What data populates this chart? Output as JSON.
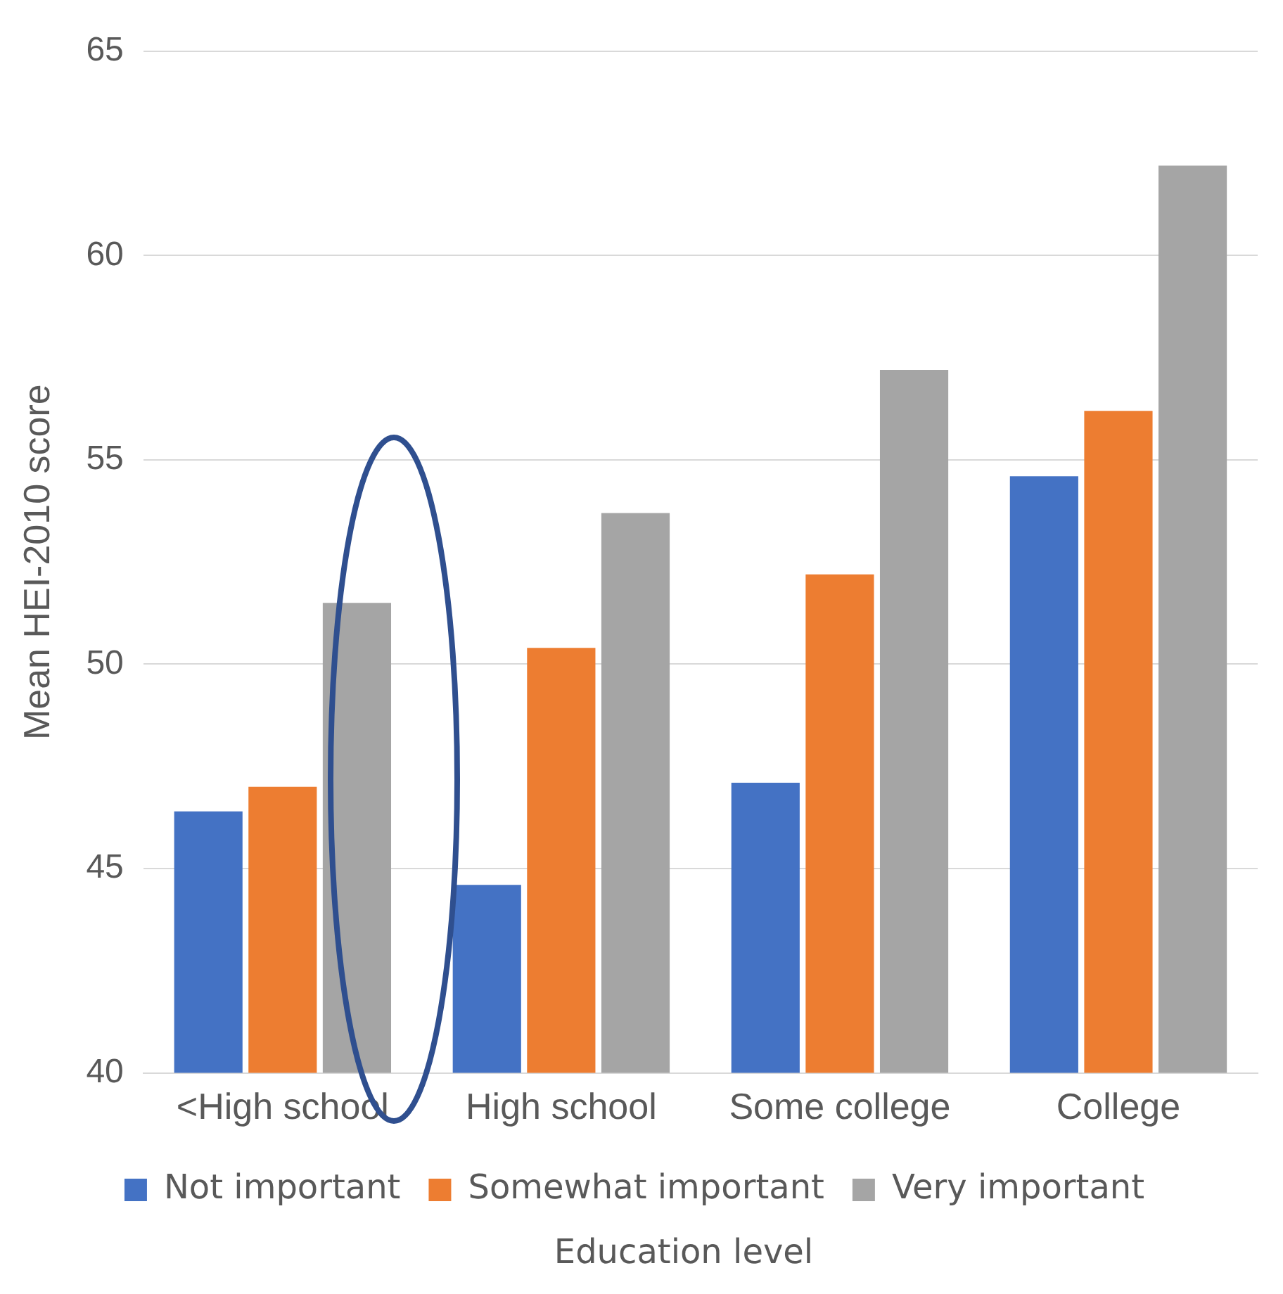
{
  "chart_data": {
    "type": "bar",
    "xlabel": "Education level",
    "ylabel": "Mean HEI-2010 score",
    "categories": [
      "<High school",
      "High school",
      "Some college",
      "College"
    ],
    "series": [
      {
        "name": "Not important",
        "color": "#4472c4",
        "values": [
          46.4,
          44.6,
          47.1,
          54.6
        ]
      },
      {
        "name": "Somewhat important",
        "color": "#ed7d31",
        "values": [
          47.0,
          50.4,
          52.2,
          56.2
        ]
      },
      {
        "name": "Very important",
        "color": "#a5a5a5",
        "values": [
          51.5,
          53.7,
          57.2,
          62.2
        ]
      }
    ],
    "ylim": [
      40,
      65
    ],
    "yticks": [
      40,
      45,
      50,
      55,
      60,
      65
    ],
    "grid": "y",
    "legend": "bottom"
  }
}
